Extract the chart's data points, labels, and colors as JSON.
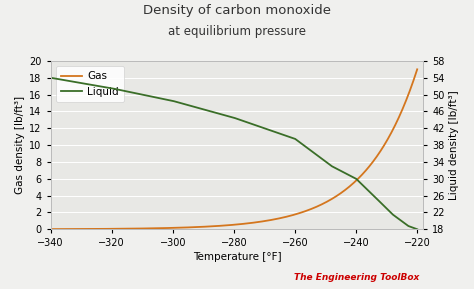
{
  "title_line1": "Density of carbon monoxide",
  "title_line2": "at equilibrium pressure",
  "xlabel": "Temperature [°F]",
  "ylabel_left": "Gas density [lb/ft³]",
  "ylabel_right": "Liquid density [lb/ft³]",
  "xlim": [
    -340,
    -218
  ],
  "ylim_left": [
    0,
    20
  ],
  "ylim_right": [
    18,
    58
  ],
  "xticks": [
    -340,
    -320,
    -300,
    -280,
    -260,
    -240,
    -220
  ],
  "yticks_left": [
    0,
    2,
    4,
    6,
    8,
    10,
    12,
    14,
    16,
    18,
    20
  ],
  "yticks_right": [
    18,
    22,
    26,
    30,
    34,
    38,
    42,
    46,
    50,
    54,
    58
  ],
  "gas_color": "#d4761e",
  "liquid_color": "#3a6e28",
  "background_color": "#f0f0ee",
  "plot_bg_color": "#e8e8e5",
  "grid_color": "#ffffff",
  "legend_gas": "Gas",
  "legend_liquid": "Liquid",
  "watermark_text": "The Engineering ToolBox",
  "watermark_color": "#cc0000",
  "title_fontsize": 9.5,
  "subtitle_fontsize": 8.5,
  "axis_label_fontsize": 7.5,
  "tick_fontsize": 7,
  "legend_fontsize": 7.5
}
